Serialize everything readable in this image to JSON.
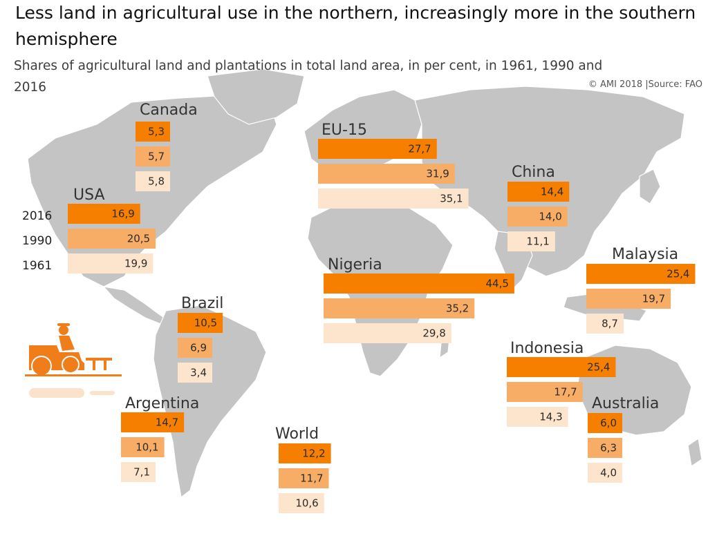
{
  "title": "Less land in agricultural use in the northern, increasingly more in the southern hemisphere",
  "subtitle": "Shares of agricultural land and plantations in total land area, in per cent, in 1961, 1990 and 2016",
  "source": "© AMI 2018 |Source: FAO",
  "colors": {
    "y2016": "#f77f00",
    "y1990": "#f8ad66",
    "y1961": "#fde4cc",
    "map": "#c4c4c4",
    "tractor": "#ef7d1a"
  },
  "icons": [
    "tractor-icon"
  ],
  "chart_data": {
    "type": "bar",
    "title": "Less land in agricultural use in the northern, increasingly more in the southern hemisphere",
    "subtitle": "Shares of agricultural land and plantations in total land area, in per cent, in 1961, 1990 and 2016",
    "years": [
      "2016",
      "1990",
      "1961"
    ],
    "regions": [
      {
        "name": "Canada",
        "values": [
          "5,3",
          "5,7",
          "5,8"
        ]
      },
      {
        "name": "USA",
        "values": [
          "16,9",
          "20,5",
          "19,9"
        ]
      },
      {
        "name": "EU-15",
        "values": [
          "27,7",
          "31,9",
          "35,1"
        ]
      },
      {
        "name": "China",
        "values": [
          "14,4",
          "14,0",
          "11,1"
        ]
      },
      {
        "name": "Malaysia",
        "values": [
          "25,4",
          "19,7",
          "8,7"
        ]
      },
      {
        "name": "Nigeria",
        "values": [
          "44,5",
          "35,2",
          "29,8"
        ]
      },
      {
        "name": "Brazil",
        "values": [
          "10,5",
          "6,9",
          "3,4"
        ]
      },
      {
        "name": "Indonesia",
        "values": [
          "25,4",
          "17,7",
          "14,3"
        ]
      },
      {
        "name": "Argentina",
        "values": [
          "14,7",
          "10,1",
          "7,1"
        ]
      },
      {
        "name": "Australia",
        "values": [
          "6,0",
          "6,3",
          "4,0"
        ]
      },
      {
        "name": "World",
        "values": [
          "12,2",
          "11,7",
          "10,6"
        ]
      }
    ]
  }
}
